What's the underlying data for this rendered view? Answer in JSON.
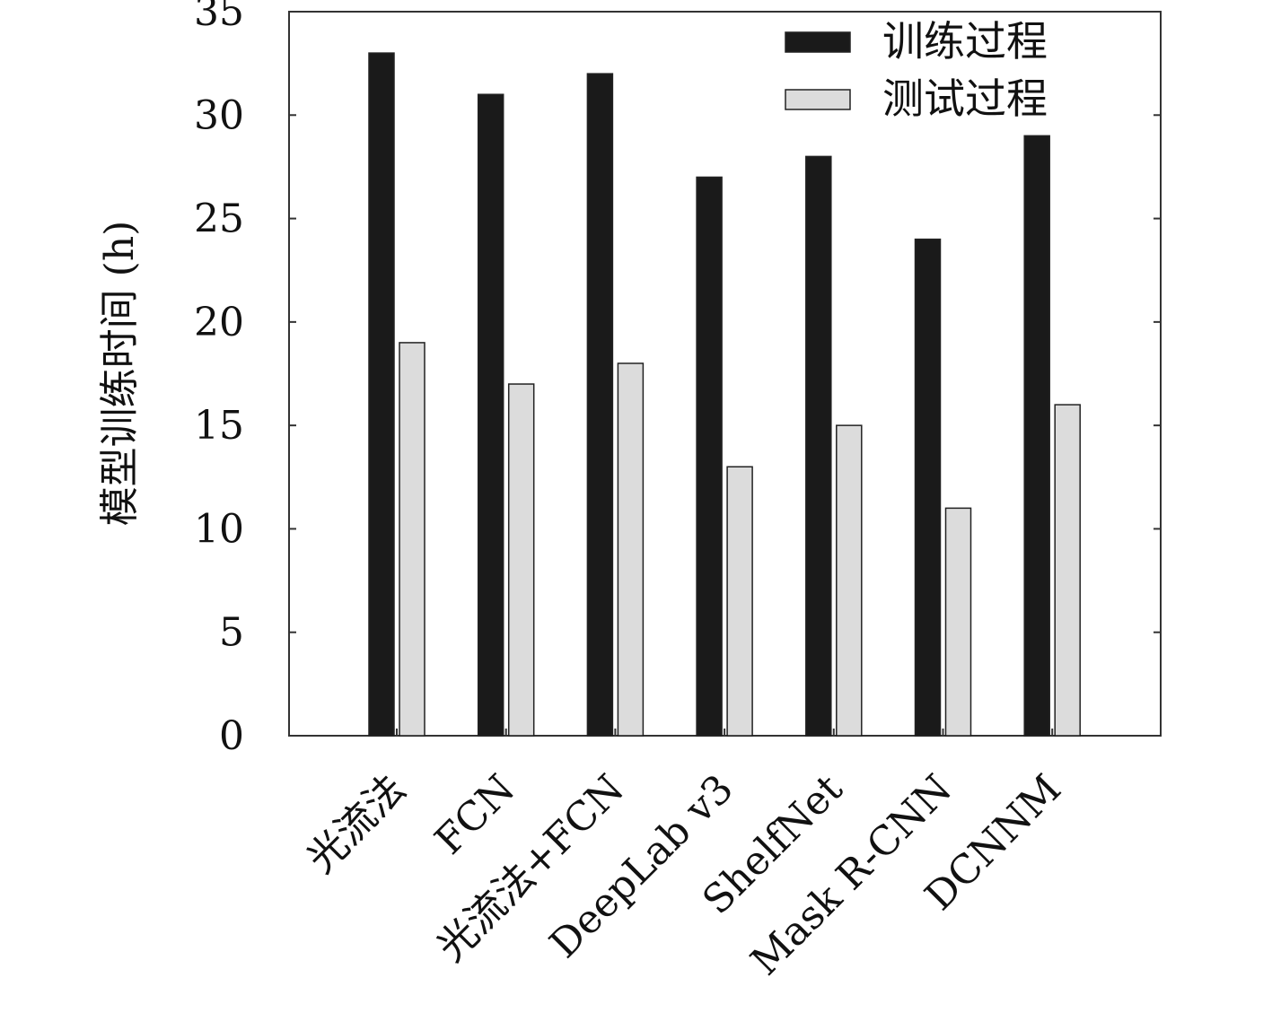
{
  "chart_data": {
    "type": "bar",
    "title": "",
    "xlabel": "",
    "ylabel": "模型训练时间 (h)",
    "ylim": [
      0,
      35
    ],
    "yticks": [
      0,
      5,
      10,
      15,
      20,
      25,
      30,
      35
    ],
    "categories": [
      "光流法",
      "FCN",
      "光流法+FCN",
      "DeepLab v3",
      "ShelfNet",
      "Mask R-CNN",
      "DCNNM"
    ],
    "series": [
      {
        "name": "训练过程",
        "color": "#1a1a1a",
        "values": [
          33,
          31,
          32,
          27,
          28,
          24,
          29
        ]
      },
      {
        "name": "测试过程",
        "color": "#dcdcdc",
        "values": [
          19,
          17,
          18,
          13,
          15,
          11,
          16
        ]
      }
    ],
    "legend": {
      "position": "top-right"
    },
    "grid": false
  }
}
